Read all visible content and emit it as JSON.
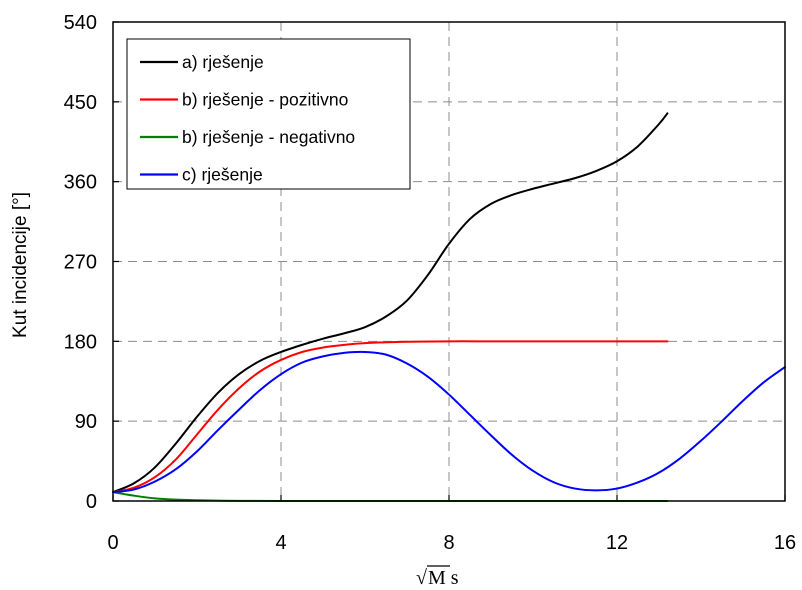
{
  "chart_data": {
    "type": "line",
    "xlabel_radical": "√",
    "xlabel": "M s",
    "ylabel": "Kut incidencije [°]",
    "xlim": [
      0,
      16
    ],
    "ylim": [
      0,
      540
    ],
    "xticks": [
      0,
      4,
      8,
      12,
      16
    ],
    "xtick_labels": [
      "0",
      "4",
      "8",
      "12",
      "16"
    ],
    "yticks": [
      0,
      90,
      180,
      270,
      360,
      450,
      540
    ],
    "ytick_labels": [
      "0",
      "90",
      "180",
      "270",
      "360",
      "450",
      "540"
    ],
    "grid": true,
    "legend_position": "top-left",
    "series": [
      {
        "name": "a) rješenje",
        "color": "#000000",
        "x": [
          0,
          0.5,
          1,
          1.5,
          2,
          2.5,
          3,
          3.5,
          4,
          4.5,
          5,
          5.5,
          6,
          6.5,
          7,
          7.5,
          8,
          8.5,
          9,
          9.5,
          10,
          10.5,
          11,
          11.5,
          12,
          12.5,
          13,
          13.2
        ],
        "y": [
          10,
          20,
          38,
          65,
          95,
          122,
          143,
          158,
          168,
          176,
          183,
          189,
          196,
          208,
          226,
          255,
          290,
          318,
          335,
          345,
          352,
          358,
          364,
          372,
          383,
          400,
          425,
          437
        ]
      },
      {
        "name": "b) rješenje - pozitivno",
        "color": "#ff0000",
        "x": [
          0,
          0.5,
          1,
          1.5,
          2,
          2.5,
          3,
          3.5,
          4,
          4.5,
          5,
          5.5,
          6,
          7,
          8,
          9,
          10,
          11,
          12,
          13,
          13.2
        ],
        "y": [
          10,
          15,
          27,
          47,
          75,
          103,
          127,
          146,
          159,
          168,
          173,
          176,
          178,
          179.5,
          180,
          180,
          180,
          180,
          180,
          180,
          180
        ]
      },
      {
        "name": "b) rješenje - negativno",
        "color": "#008000",
        "x": [
          0,
          0.5,
          1,
          1.5,
          2,
          2.5,
          3,
          4,
          6,
          8,
          10,
          12,
          13.2
        ],
        "y": [
          10,
          6,
          3,
          1.5,
          0.8,
          0.4,
          0.2,
          0,
          0,
          0,
          0,
          0,
          0
        ]
      },
      {
        "name": "c) rješenje",
        "color": "#0000ff",
        "x": [
          0,
          0.5,
          1,
          1.5,
          2,
          2.5,
          3,
          3.5,
          4,
          4.5,
          5,
          5.5,
          6,
          6.5,
          7,
          7.5,
          8,
          8.5,
          9,
          9.5,
          10,
          10.5,
          11,
          11.5,
          12,
          12.5,
          13,
          13.5,
          14,
          14.5,
          15,
          15.5,
          16
        ],
        "y": [
          10,
          13,
          22,
          36,
          56,
          80,
          103,
          125,
          143,
          156,
          163,
          167,
          168,
          165,
          155,
          140,
          120,
          97,
          74,
          52,
          34,
          21,
          14,
          12,
          14,
          21,
          32,
          48,
          68,
          90,
          113,
          134,
          151
        ]
      }
    ]
  }
}
